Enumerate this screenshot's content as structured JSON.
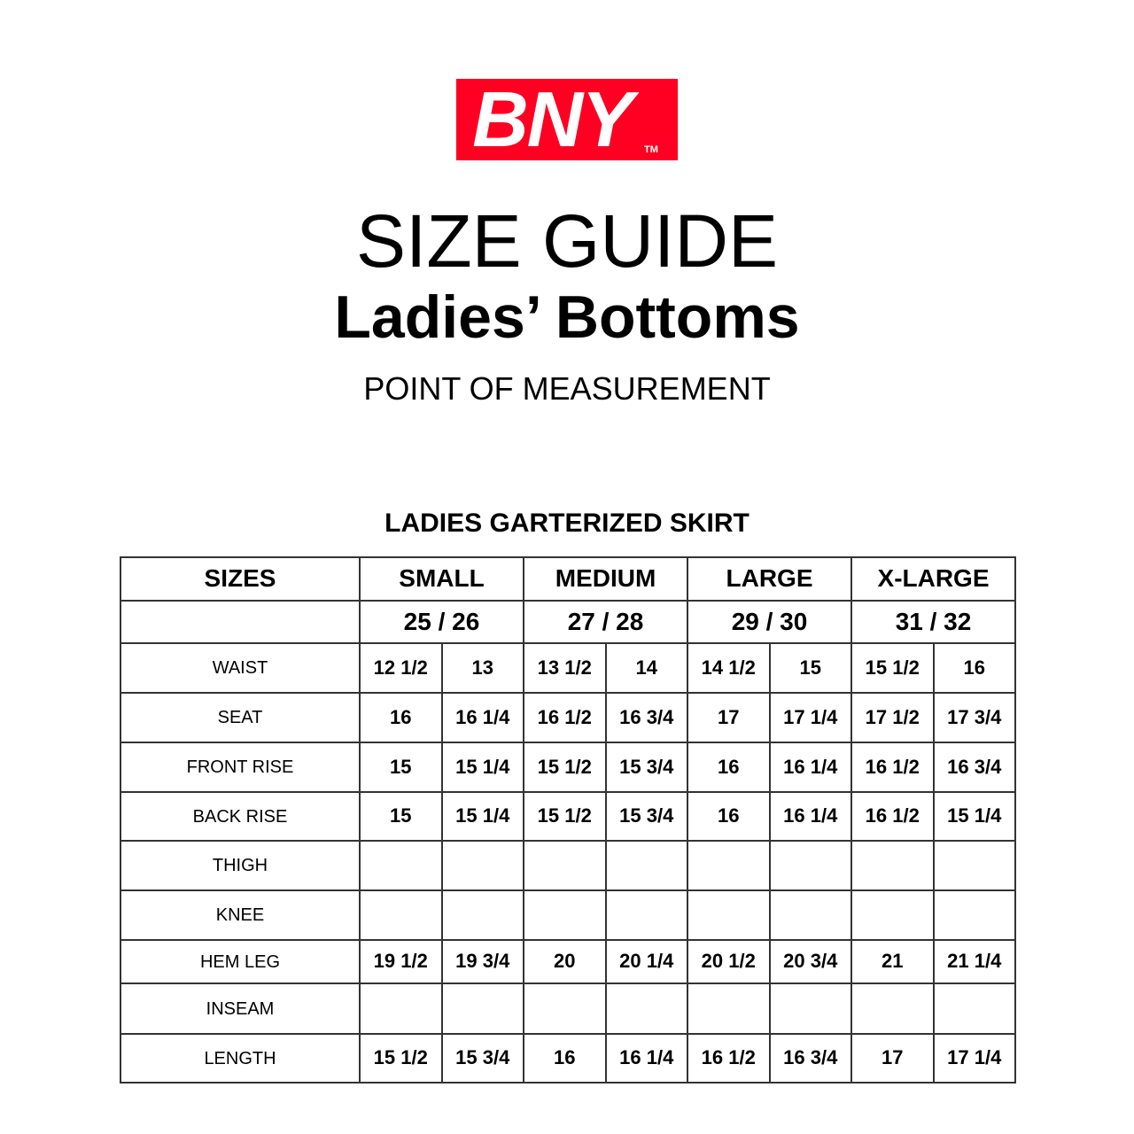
{
  "logo": {
    "text": "BNY",
    "tm": "TM",
    "color": "#ff0022"
  },
  "title": "SIZE GUIDE",
  "subtitle": "Ladies’ Bottoms",
  "point_of_measurement": "POINT OF MEASUREMENT",
  "table_title": "LADIES GARTERIZED SKIRT",
  "table": {
    "sizes_label": "SIZES",
    "sizes": [
      {
        "name": "SMALL",
        "range": "25 / 26"
      },
      {
        "name": "MEDIUM",
        "range": "27 / 28"
      },
      {
        "name": "LARGE",
        "range": "29 / 30"
      },
      {
        "name": "X-LARGE",
        "range": "31 / 32"
      }
    ],
    "rows": [
      {
        "label": "WAIST",
        "values": [
          "12 1/2",
          "13",
          "13 1/2",
          "14",
          "14 1/2",
          "15",
          "15 1/2",
          "16"
        ]
      },
      {
        "label": "SEAT",
        "values": [
          "16",
          "16 1/4",
          "16 1/2",
          "16 3/4",
          "17",
          "17 1/4",
          "17 1/2",
          "17 3/4"
        ]
      },
      {
        "label": "FRONT RISE",
        "values": [
          "15",
          "15 1/4",
          "15 1/2",
          "15 3/4",
          "16",
          "16 1/4",
          "16 1/2",
          "16 3/4"
        ]
      },
      {
        "label": "BACK RISE",
        "values": [
          "15",
          "15 1/4",
          "15 1/2",
          "15 3/4",
          "16",
          "16 1/4",
          "16 1/2",
          "15 1/4"
        ]
      },
      {
        "label": "THIGH",
        "values": [
          "",
          "",
          "",
          "",
          "",
          "",
          "",
          ""
        ]
      },
      {
        "label": "KNEE",
        "values": [
          "",
          "",
          "",
          "",
          "",
          "",
          "",
          ""
        ]
      },
      {
        "label": "HEM LEG",
        "values": [
          "19 1/2",
          "19 3/4",
          "20",
          "20 1/4",
          "20 1/2",
          "20 3/4",
          "21",
          "21 1/4"
        ]
      },
      {
        "label": "INSEAM",
        "values": [
          "",
          "",
          "",
          "",
          "",
          "",
          "",
          ""
        ]
      },
      {
        "label": "LENGTH",
        "values": [
          "15 1/2",
          "15 3/4",
          "16",
          "16 1/4",
          "16 1/2",
          "16 3/4",
          "17",
          "17 1/4"
        ]
      }
    ]
  }
}
